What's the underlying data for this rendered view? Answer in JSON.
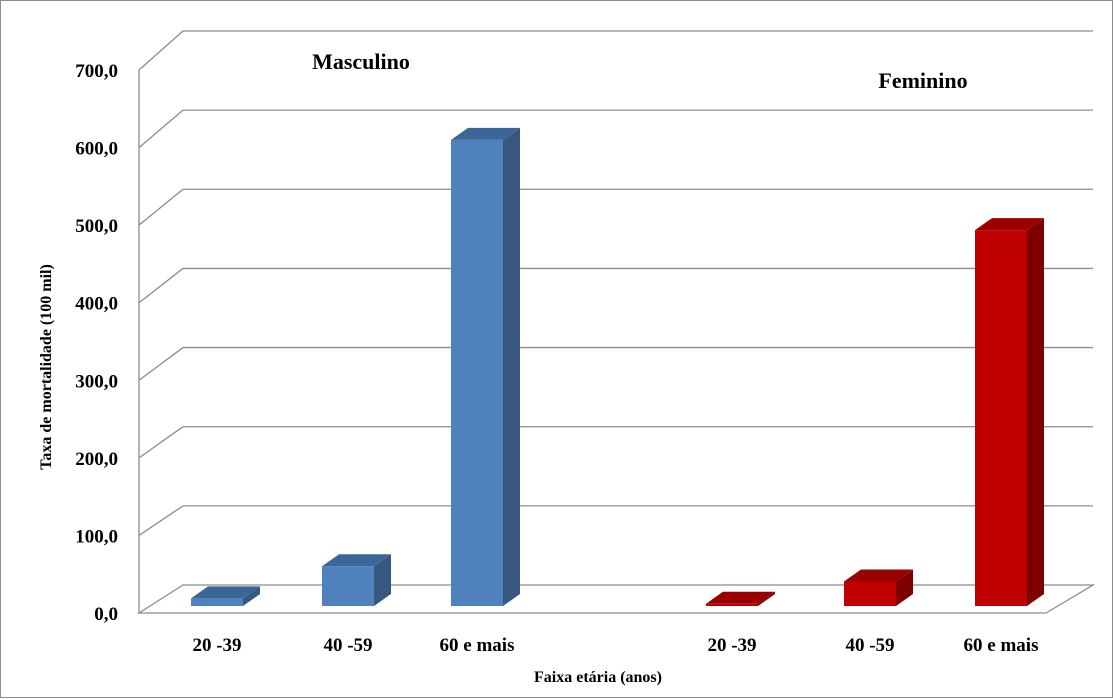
{
  "chart_data": {
    "type": "bar",
    "subtype": "3d-clustered-column",
    "xlabel": "Faixa etária (anos)",
    "ylabel": "Taxa de mortalidade (100 mil)",
    "ylim": [
      0,
      700
    ],
    "y_ticks": [
      "0,0",
      "100,0",
      "200,0",
      "300,0",
      "400,0",
      "500,0",
      "600,0",
      "700,0"
    ],
    "grid": true,
    "groups": [
      {
        "label": "Masculino",
        "color": "#4F81BD",
        "side_color": "#36587F",
        "top_color": "#3C6698",
        "categories": [
          "20 -39",
          "40 -59",
          "60 e mais"
        ],
        "values": [
          10,
          52,
          610
        ]
      },
      {
        "label": "Feminino",
        "color": "#C00000",
        "side_color": "#7F0000",
        "top_color": "#9A0000",
        "categories": [
          "20 -39",
          "40 -59",
          "60 e mais"
        ],
        "values": [
          3,
          32,
          492
        ]
      }
    ]
  }
}
